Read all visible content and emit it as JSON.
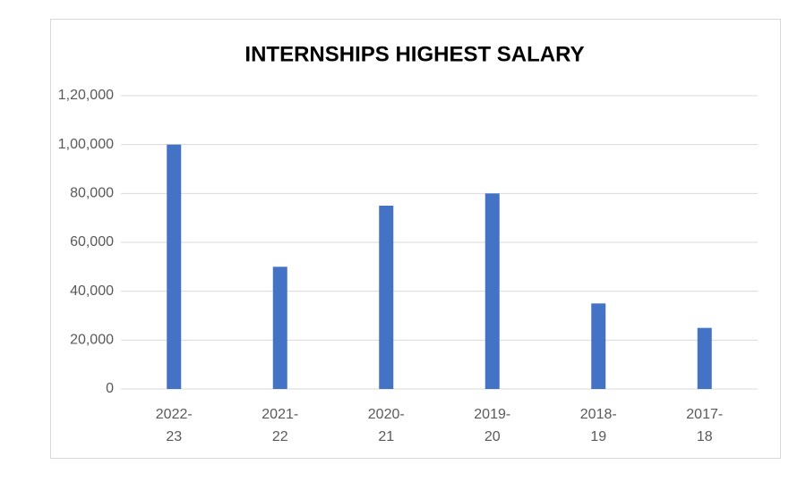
{
  "chart_data": {
    "type": "bar",
    "title": "INTERNSHIPS HIGHEST SALARY",
    "categories": [
      "2022-23",
      "2021-22",
      "2020-21",
      "2019-20",
      "2018-19",
      "2017-18"
    ],
    "values": [
      100000,
      50000,
      75000,
      80000,
      35000,
      25000
    ],
    "color": "#4472c4",
    "ylim": [
      0,
      120000
    ],
    "yticks": [
      0,
      {
        "value": 20000,
        "label": "20,000"
      },
      {
        "value": 40000,
        "label": "40,000"
      },
      {
        "value": 60000,
        "label": "60,000"
      },
      {
        "value": 80000,
        "label": "80,000"
      },
      {
        "value": 100000,
        "label": "1,00,000"
      },
      {
        "value": 120000,
        "label": "1,20,000"
      }
    ],
    "grid": true
  }
}
